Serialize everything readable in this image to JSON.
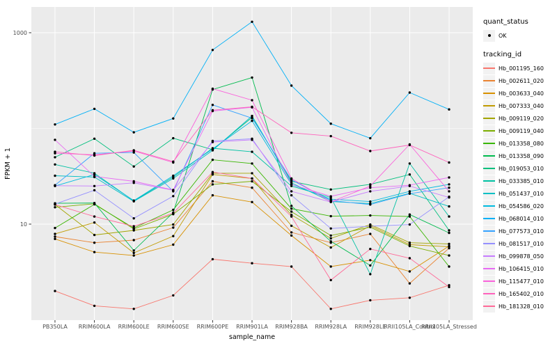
{
  "figure": {
    "background": "#FFFFFF",
    "panel_background": "#EBEBEB",
    "gridline_color": "#FFFFFF",
    "tick_label_color": "#4D4D4D",
    "axis_title_color": "#000000",
    "point_color": "#000000",
    "legend_key_fill": "#F2F2F2"
  },
  "legend": {
    "quant_status_title": "quant_status",
    "quant_status_entry": "OK",
    "tracking_id_title": "tracking_id"
  },
  "chart_data": {
    "type": "line",
    "title": "",
    "xlabel": "sample_name",
    "ylabel": "FPKM + 1",
    "y_scale": "log10",
    "y_ticks": [
      10,
      1000
    ],
    "y_tick_labels": [
      "10",
      "1000"
    ],
    "y_minor_gridlines": [
      100
    ],
    "ylim": [
      1.2,
      1450
    ],
    "grid": true,
    "legend_position": "right",
    "x_categories": [
      "PB350LA",
      "RRIM600LA",
      "RRIM600LE",
      "RRIM600SE",
      "RRIM600PE",
      "RRIM901LA",
      "RRIM928BA",
      "RRIM928LA",
      "RRIM928LE",
      "RRII105LA_Control",
      "RRII105LA_Stressed"
    ],
    "series": [
      {
        "name": "Hb_001195_160",
        "color": "#F8766D",
        "values": [
          2.0,
          1.4,
          1.3,
          1.8,
          4.3,
          3.9,
          3.6,
          1.3,
          1.6,
          1.7,
          2.3
        ]
      },
      {
        "name": "Hb_002611_020",
        "color": "#EA8331",
        "values": [
          7.4,
          6.4,
          6.8,
          9.2,
          28,
          24,
          8.2,
          6.4,
          7.9,
          2.4,
          5.6
        ]
      },
      {
        "name": "Hb_003633_040",
        "color": "#D89000",
        "values": [
          7.0,
          5.1,
          4.7,
          6.1,
          20,
          17,
          7.6,
          3.6,
          4.2,
          3.2,
          5.9
        ]
      },
      {
        "name": "Hb_007333_040",
        "color": "#C09B00",
        "values": [
          7.9,
          10.4,
          5.0,
          7.5,
          33,
          30,
          9.6,
          5.7,
          9.6,
          6.1,
          5.8
        ]
      },
      {
        "name": "Hb_009119_020",
        "color": "#A3A500",
        "values": [
          16,
          7.7,
          8.6,
          9.9,
          34,
          34,
          12.5,
          7.1,
          9.9,
          6.4,
          6.2
        ]
      },
      {
        "name": "Hb_009119_040",
        "color": "#7CAE00",
        "values": [
          15,
          16.3,
          8.9,
          12.7,
          26,
          28,
          13.5,
          7.6,
          9.3,
          5.9,
          4.7
        ]
      },
      {
        "name": "Hb_013358_080",
        "color": "#39B600",
        "values": [
          9.1,
          16.1,
          9.1,
          14.1,
          47,
          43,
          14.5,
          12.1,
          12.3,
          12.0,
          3.6
        ]
      },
      {
        "name": "Hb_013358_090",
        "color": "#00BB4E",
        "values": [
          16.5,
          16.6,
          5.3,
          13.2,
          255,
          340,
          15.5,
          6.6,
          3.7,
          12.6,
          8.1
        ]
      },
      {
        "name": "Hb_019053_010",
        "color": "#00BF7D",
        "values": [
          50,
          78,
          40,
          79,
          60,
          130,
          28,
          23,
          26,
          33,
          8.6
        ]
      },
      {
        "name": "Hb_033385_010",
        "color": "#00C1A3",
        "values": [
          42,
          34,
          17.5,
          31,
          62,
          57,
          25,
          19,
          3.0,
          43,
          12
        ]
      },
      {
        "name": "Hb_051437_010",
        "color": "#00BFC4",
        "values": [
          32,
          31,
          17.3,
          30,
          59,
          135,
          27,
          17.2,
          16.4,
          21,
          15.3
        ]
      },
      {
        "name": "Hb_054586_020",
        "color": "#00BAE0",
        "values": [
          25,
          33,
          17.6,
          32,
          61,
          120,
          26,
          18.2,
          17.2,
          22,
          26
        ]
      },
      {
        "name": "Hb_068014_010",
        "color": "#00B0F6",
        "values": [
          110,
          160,
          91,
          127,
          660,
          1300,
          280,
          112,
          79,
          237,
          158
        ]
      },
      {
        "name": "Hb_077573_010",
        "color": "#35A2FF",
        "values": [
          25.5,
          55,
          56,
          22,
          176,
          128,
          29,
          17.6,
          16.0,
          20.8,
          24
        ]
      },
      {
        "name": "Hb_081517_010",
        "color": "#9590FF",
        "values": [
          16.2,
          22.6,
          11.5,
          19.6,
          74,
          78,
          20,
          9.0,
          9.5,
          9.9,
          19.3
        ]
      },
      {
        "name": "Hb_099878_050",
        "color": "#C77CFF",
        "values": [
          25.2,
          25,
          27,
          22.6,
          72,
          76,
          22,
          17.0,
          22,
          25,
          19
        ]
      },
      {
        "name": "Hb_106415_010",
        "color": "#E76BF3",
        "values": [
          76,
          31.5,
          28,
          22.7,
          152,
          166,
          26,
          19.5,
          24,
          25.5,
          30.7
        ]
      },
      {
        "name": "Hb_115477_010",
        "color": "#FA62DB",
        "values": [
          55,
          53,
          58,
          44,
          260,
          197,
          30,
          17.1,
          25,
          68,
          22
        ]
      },
      {
        "name": "Hb_165402_010",
        "color": "#FF62BC",
        "values": [
          57,
          52,
          59,
          45,
          155,
          168,
          90,
          83,
          58,
          67,
          44
        ]
      },
      {
        "name": "Hb_181328_010",
        "color": "#FF6A98",
        "values": [
          16,
          12,
          9.5,
          13,
          35,
          30,
          12,
          2.6,
          5.5,
          4.4,
          2.2
        ]
      }
    ]
  }
}
